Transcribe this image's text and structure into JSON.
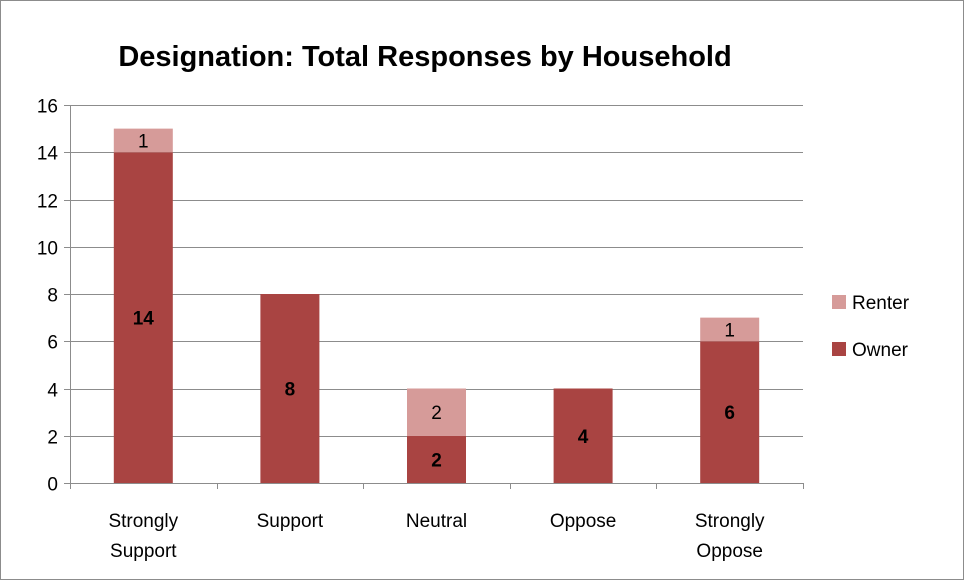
{
  "chart_data": {
    "type": "bar",
    "stacked": true,
    "title": "Designation: Total Responses by Household",
    "xlabel": "",
    "ylabel": "",
    "ylim": [
      0,
      16
    ],
    "yticks": [
      0,
      2,
      4,
      6,
      8,
      10,
      12,
      14,
      16
    ],
    "grid": true,
    "legend_position": "right",
    "categories": [
      [
        "Strongly",
        "Support"
      ],
      [
        "Support"
      ],
      [
        "Neutral"
      ],
      [
        "Oppose"
      ],
      [
        "Strongly",
        "Oppose"
      ]
    ],
    "series": [
      {
        "name": "Owner",
        "color": "#a94442",
        "values": [
          14,
          8,
          2,
          4,
          6
        ],
        "labels": [
          "14",
          "8",
          "2",
          "4",
          "6"
        ]
      },
      {
        "name": "Renter",
        "color": "#d69b99",
        "values": [
          1,
          0,
          2,
          0,
          1
        ],
        "labels": [
          "1",
          "",
          "2",
          "",
          "1"
        ]
      }
    ],
    "legend_order": [
      "Renter",
      "Owner"
    ]
  }
}
